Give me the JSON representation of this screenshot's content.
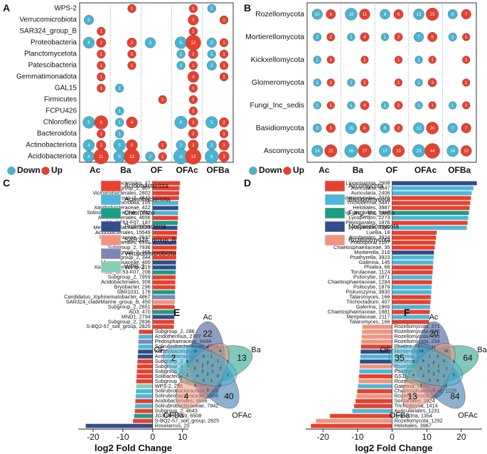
{
  "chart_data": [
    {
      "panel": "A",
      "type": "scatter",
      "subtype": "dot-matrix",
      "title": "",
      "categories": [
        "Ac",
        "Ba",
        "OF",
        "OFAc",
        "OFBa"
      ],
      "rows": [
        "WPS-2",
        "Verrucomicrobiota",
        "SAR324_group_B",
        "Proteobacteria",
        "Planctomycetota",
        "Patescibacteria",
        "Gemmatimonadota",
        "GAL15",
        "Firmicutes",
        "FCPU426",
        "Chloroflexi",
        "Bacteroidota",
        "Actinobacteriota",
        "Acidobacteriota"
      ],
      "down": [
        [
          null,
          null,
          null,
          null,
          1
        ],
        [
          2,
          null,
          null,
          null,
          null
        ],
        [
          null,
          null,
          null,
          null,
          null
        ],
        [
          4,
          null,
          3,
          5,
          2
        ],
        [
          null,
          null,
          null,
          1,
          1
        ],
        [
          null,
          null,
          null,
          1,
          2
        ],
        [
          null,
          null,
          null,
          null,
          null
        ],
        [
          null,
          1,
          null,
          null,
          null
        ],
        [
          null,
          null,
          null,
          null,
          null
        ],
        [
          null,
          1,
          null,
          null,
          null
        ],
        [
          5,
          1,
          null,
          6,
          5
        ],
        [
          null,
          1,
          null,
          null,
          null
        ],
        [
          4,
          5,
          null,
          2,
          2
        ],
        [
          4,
          5,
          2,
          11,
          8
        ]
      ],
      "up": [
        [
          null,
          1,
          null,
          1,
          null
        ],
        [
          null,
          null,
          null,
          3,
          1
        ],
        [
          1,
          null,
          null,
          1,
          null
        ],
        [
          2,
          2,
          null,
          12,
          1
        ],
        [
          1,
          1,
          null,
          2,
          1
        ],
        [
          1,
          1,
          null,
          1,
          1
        ],
        [
          1,
          null,
          null,
          4,
          1
        ],
        [
          1,
          null,
          null,
          1,
          null
        ],
        [
          null,
          null,
          1,
          1,
          null
        ],
        [
          null,
          null,
          null,
          1,
          null
        ],
        [
          8,
          4,
          null,
          2,
          2
        ],
        [
          1,
          null,
          null,
          2,
          1
        ],
        [
          2,
          4,
          1,
          3,
          3
        ],
        [
          11,
          13,
          1,
          13,
          3
        ]
      ],
      "legend": {
        "down": "Down",
        "up": "Up"
      }
    },
    {
      "panel": "B",
      "type": "scatter",
      "subtype": "dot-matrix",
      "categories": [
        "Ac",
        "Ba",
        "OF",
        "OFAc",
        "OFBa"
      ],
      "rows": [
        "Rozellomycota",
        "Mortierellomycota",
        "Kickxellomycota",
        "Glomeromycota",
        "Fungi_Inc_sedis",
        "Basidiomycota",
        "Ascomycota"
      ],
      "down": [
        [
          10,
          19,
          8,
          12,
          6
        ],
        [
          2,
          1,
          1,
          7,
          2
        ],
        [
          1,
          null,
          null,
          1,
          null
        ],
        [
          1,
          1,
          null,
          1,
          null
        ],
        [
          1,
          1,
          1,
          1,
          1
        ],
        [
          3,
          15,
          6,
          12,
          7
        ],
        [
          14,
          26,
          17,
          23,
          16
        ]
      ],
      "up": [
        [
          6,
          11,
          6,
          23,
          7
        ],
        [
          2,
          4,
          2,
          6,
          1
        ],
        [
          1,
          1,
          1,
          1,
          1
        ],
        [
          1,
          1,
          1,
          3,
          1
        ],
        [
          1,
          4,
          2,
          1,
          1
        ],
        [
          5,
          6,
          2,
          20,
          7
        ],
        [
          22,
          27,
          19,
          44,
          12
        ]
      ],
      "legend": {
        "down": "Down",
        "up": "Up"
      }
    },
    {
      "panel": "C",
      "type": "bar",
      "orientation": "horizontal",
      "xlabel": "log2 Fold Change",
      "xlim": [
        -25,
        12
      ],
      "xticks": [
        -20,
        -10,
        0,
        10
      ],
      "legend": [
        "Acidobacteriota",
        "Actinobacteriota",
        "Chloroflexi",
        "Proteobacteria",
        "SAR324_group_B",
        "Verrucomicrobiota",
        "WPS-2"
      ],
      "colors": {
        "Acidobacteriota": "#E8402F",
        "Actinobacteriota": "#4FB6D6",
        "Chloroflexi": "#1E9C84",
        "Proteobacteria": "#324E88",
        "SAR324_group_B": "#EE9582",
        "Verrucomicrobiota": "#7E86B3",
        "WPS-2": "#85CDB4"
      },
      "categories": [
        "Acidobacteriales, 47",
        "Subgroup_2, 307",
        "Vicinamibacterales, 2802",
        "Subgroup_2, 4643",
        "Acidimicrobiia, 105",
        "Xanthobacteraceae, 422",
        "Solirubrobacteraceae, 7942",
        "Acidobacteriales, 4656",
        "HSB_OF53-F07, 187",
        "Methyloligellaceae, 2623",
        "Acidobacteriales, 15549",
        "Solibacteraceae, 7937",
        "Elsterales, 6391",
        "Subgroup_2, 7936",
        "Subgroup_2, 355",
        "Subgroup_2, 344",
        "Micropepsaceae, 400",
        "Xanthobacteraceae, 319",
        "HSB_OF53-F07, 208",
        "Subgroup_2, 7959",
        "Acidobacteriales, 308",
        "Bryobacter, 296",
        "SBR1031, 178",
        "Candidatus_Xiphinematobacter, 4867",
        "SAR324_cladeMarine_group_B, 450",
        "Subgroup_2, 2651",
        "AD3, 470",
        "MND1, 2794",
        "Subgroup_2, 2836",
        "S-BQ2-57_soil_group, 2825",
        "Subgroup_2, 286",
        "Acidothermus, 2707",
        "Pedosphaeraceae, 6444",
        "Solirubrobacteraceae, 4659",
        "Xanthobacteraceae, 6466",
        "Acetobacteraceae, 6434",
        "Subgroup_2, 6395",
        "Subgroup_2, 355",
        "Subgroup_2, 7936",
        "Solibacteraceae, 7937",
        "Subgroup_2, 6393",
        "WPS-2, 256",
        "Solirubrobacteraceae, 6386",
        "Solirubrobacteraceae, 6656",
        "Acidobacteriales, 4656",
        "Solirubrobacteraceae, 7942",
        "Subgroup_2, 4643",
        "JG30-KF-AS9, 6508",
        "S-BQ2-57_soil_group, 2825",
        "Roseiarcus, 20"
      ],
      "values": [
        9.2,
        9.0,
        8.9,
        8.8,
        8.6,
        8.6,
        8.5,
        8.5,
        8.4,
        8.3,
        8.2,
        8.1,
        8.0,
        8.0,
        7.9,
        7.9,
        7.8,
        7.8,
        7.7,
        7.7,
        7.6,
        7.6,
        7.5,
        7.5,
        7.4,
        7.4,
        7.3,
        7.3,
        7.2,
        7.1,
        -4.6,
        -4.7,
        -4.8,
        -4.8,
        -4.9,
        -5.0,
        -5.1,
        -5.2,
        -5.3,
        -5.4,
        -5.5,
        -5.5,
        -5.6,
        -5.7,
        -5.8,
        -5.9,
        -6.0,
        -6.2,
        -6.6,
        -22.5
      ],
      "groups": [
        "Acidobacteriota",
        "Acidobacteriota",
        "Acidobacteriota",
        "Acidobacteriota",
        "Actinobacteriota",
        "Proteobacteria",
        "Actinobacteriota",
        "Acidobacteriota",
        "Chloroflexi",
        "Proteobacteria",
        "Acidobacteriota",
        "Acidobacteriota",
        "Proteobacteria",
        "Acidobacteriota",
        "Acidobacteriota",
        "Acidobacteriota",
        "Proteobacteria",
        "Proteobacteria",
        "Chloroflexi",
        "Acidobacteriota",
        "Acidobacteriota",
        "Acidobacteriota",
        "Chloroflexi",
        "Verrucomicrobiota",
        "SAR324_group_B",
        "Acidobacteriota",
        "Chloroflexi",
        "Proteobacteria",
        "Acidobacteriota",
        "Acidobacteriota",
        "Acidobacteriota",
        "Actinobacteriota",
        "Verrucomicrobiota",
        "Actinobacteriota",
        "Proteobacteria",
        "Proteobacteria",
        "Acidobacteriota",
        "Acidobacteriota",
        "Acidobacteriota",
        "Acidobacteriota",
        "Acidobacteriota",
        "WPS-2",
        "Actinobacteriota",
        "Actinobacteriota",
        "Acidobacteriota",
        "Actinobacteriota",
        "Acidobacteriota",
        "Chloroflexi",
        "Acidobacteriota",
        "Proteobacteria"
      ]
    },
    {
      "panel": "D",
      "type": "bar",
      "orientation": "horizontal",
      "xlabel": "log2 Fold Change",
      "xlim": [
        -25,
        26
      ],
      "xticks": [
        -20,
        -10,
        0,
        10,
        20
      ],
      "legend": [
        "Ascomycota",
        "Basidiomycota",
        "Fungi_Inc_sedis",
        "Mortierellomycota",
        "Rozellomycota"
      ],
      "colors": {
        "Ascomycota": "#E8402F",
        "Basidiomycota": "#4FB6D6",
        "Fungi_Inc_sedis": "#1E9C84",
        "Mortierellomycota": "#324E88",
        "Rozellomycota": "#EE9582"
      },
      "categories": [
        "Linnemannia, 2608",
        "Auricularia, 4847",
        "Auricularia, 2406",
        "Sordariomycetes, 2079",
        "Trichoderma, 5447",
        "Helotiales, 3987",
        "Fungi_Inc_sedis, 5448",
        "Lycoperdon, 2273",
        "Pleosporales, 1876",
        "Lycoperdon, 3399",
        "Luellia, 18",
        "Sordariales, 3924",
        "Podospora, 2107",
        "Chaetosphaeriaceae, 35",
        "Mortierella, 216",
        "Psathyrella, 3923",
        "Galerina, 145",
        "Phialea, 68",
        "Torulaceae, 1124",
        "Psilocybe, 1871",
        "Chaetosphaeriaceae, 1294",
        "Psilocybe, 1879",
        "Piskurozyma, 3930",
        "Talaromyces, 166",
        "Trichocladium, 407",
        "Galerina, 1969",
        "Chaetosphaeriaceae, 1881",
        "Meripilaceae, 2117",
        "Talaromyces, 166",
        "Rozellomycota, 271",
        "Rozellomycota, 276",
        "Rozellomycota, 415",
        "Rozellomycota, 234",
        "Phialea, 68",
        "Mortierella, 1240",
        "Galerina, 1322",
        "Mortierellaceae, 151",
        "Rozellomycota, 401",
        "Psathyrella, 3923",
        "GS11, 1241",
        "Rozellomycota, 106",
        "Galerina, 1234",
        "Chaetosphaeriaceae, 1225",
        "Rozellomycota, 24",
        "Sordariales, 3924",
        "Trichoderma, 1414",
        "Auriculariales, 1231",
        "Ilyonectria, 1354",
        "Rozellomycota, 1292",
        "Helotiales, 3987"
      ],
      "values": [
        24.5,
        23.5,
        23.0,
        22.8,
        22.6,
        22.4,
        22.2,
        22.0,
        21.8,
        21.6,
        12.9,
        12.7,
        12.5,
        12.3,
        12.1,
        12.0,
        11.9,
        11.8,
        11.7,
        11.6,
        11.5,
        11.4,
        11.3,
        11.2,
        11.1,
        11.0,
        10.9,
        10.8,
        10.7,
        -8.6,
        -8.7,
        -8.8,
        -8.9,
        -9.0,
        -9.1,
        -9.2,
        -9.3,
        -9.4,
        -9.5,
        -9.6,
        -9.7,
        -9.9,
        -10.1,
        -10.3,
        -10.6,
        -11.0,
        -11.5,
        -18.0,
        -22.0,
        -23.5
      ],
      "groups": [
        "Mortierellomycota",
        "Basidiomycota",
        "Basidiomycota",
        "Ascomycota",
        "Ascomycota",
        "Ascomycota",
        "Fungi_Inc_sedis",
        "Basidiomycota",
        "Ascomycota",
        "Basidiomycota",
        "Ascomycota",
        "Ascomycota",
        "Ascomycota",
        "Ascomycota",
        "Mortierellomycota",
        "Basidiomycota",
        "Basidiomycota",
        "Ascomycota",
        "Ascomycota",
        "Basidiomycota",
        "Ascomycota",
        "Basidiomycota",
        "Basidiomycota",
        "Ascomycota",
        "Ascomycota",
        "Basidiomycota",
        "Ascomycota",
        "Basidiomycota",
        "Ascomycota",
        "Rozellomycota",
        "Rozellomycota",
        "Rozellomycota",
        "Rozellomycota",
        "Ascomycota",
        "Mortierellomycota",
        "Basidiomycota",
        "Mortierellomycota",
        "Rozellomycota",
        "Basidiomycota",
        "Ascomycota",
        "Rozellomycota",
        "Basidiomycota",
        "Ascomycota",
        "Rozellomycota",
        "Ascomycota",
        "Ascomycota",
        "Basidiomycota",
        "Ascomycota",
        "Rozellomycota",
        "Ascomycota"
      ]
    },
    {
      "panel": "E",
      "type": "venn",
      "sets": [
        "Ac",
        "Ba",
        "OFAc",
        "OFBa",
        "OF"
      ],
      "unique": {
        "Ac": 22,
        "Ba": 13,
        "OFAc": 40,
        "OFBa": 4,
        "OF": 2
      },
      "inner_counts": [
        "4",
        "4",
        "1",
        "1",
        "0",
        "1",
        "3",
        "2",
        "0",
        "3",
        "1",
        "1",
        "2",
        "0",
        "1",
        "0",
        "4",
        "3",
        "0",
        "0",
        "3",
        "0",
        "1",
        "3",
        "0",
        "2"
      ]
    },
    {
      "panel": "F",
      "type": "venn",
      "sets": [
        "Ac",
        "Ba",
        "OFAc",
        "OFBa",
        "OF"
      ],
      "unique": {
        "Ac": 20,
        "Ba": 64,
        "OFAc": 84,
        "OFBa": 13,
        "OF": 35
      },
      "inner_counts": [
        "11",
        "12",
        "4",
        "5",
        "1",
        "7",
        "2",
        "4",
        "3",
        "19",
        "3",
        "0",
        "1",
        "2",
        "4",
        "0",
        "2",
        "5",
        "6",
        "1",
        "0",
        "1",
        "0",
        "3",
        "3",
        "2"
      ]
    }
  ],
  "labels": {
    "down": "Down",
    "up": "Up"
  },
  "colors": {
    "down": "#48B4D3",
    "up": "#E8402F"
  }
}
